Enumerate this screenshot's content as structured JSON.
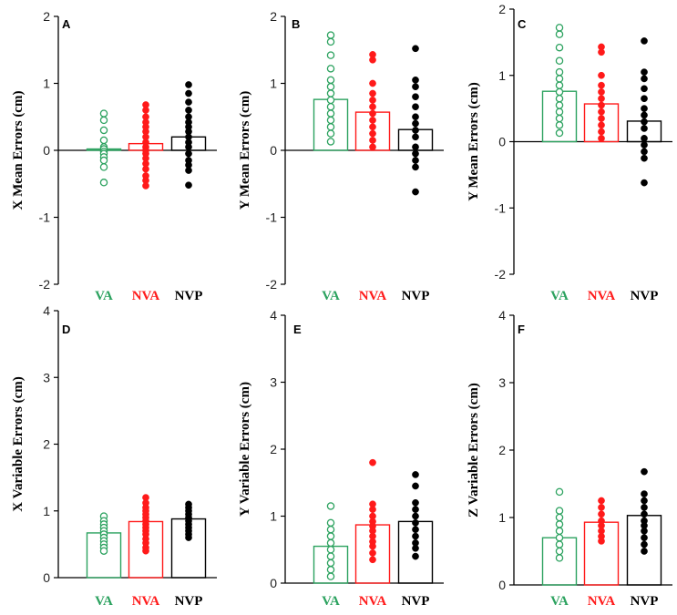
{
  "colors": {
    "VA": "#2ca25f",
    "NVA": "#ff1a1a",
    "NVP": "#000000"
  },
  "chart_data": [
    {
      "panel": "A",
      "type": "bar",
      "ylabel": "X Mean Errors  (cm)",
      "categories": [
        "VA",
        "NVA",
        "NVP"
      ],
      "ylim": [
        -2,
        2
      ],
      "yticks": [
        "-2",
        "-1",
        "0",
        "1",
        "2"
      ],
      "ytick_values": [
        -2,
        -1,
        0,
        1,
        2
      ],
      "means": [
        0.02,
        0.1,
        0.2
      ],
      "points": [
        [
          0.55,
          0.45,
          0.3,
          0.15,
          0.05,
          0.02,
          -0.02,
          -0.05,
          -0.1,
          -0.15,
          -0.25,
          -0.48
        ],
        [
          0.68,
          0.6,
          0.5,
          0.42,
          0.35,
          0.28,
          0.2,
          0.12,
          0.05,
          0.0,
          -0.05,
          -0.12,
          -0.2,
          -0.28,
          -0.38,
          -0.45,
          -0.53
        ],
        [
          0.98,
          0.85,
          0.72,
          0.6,
          0.5,
          0.42,
          0.35,
          0.28,
          0.2,
          0.12,
          0.05,
          -0.05,
          -0.15,
          -0.22,
          -0.3,
          -0.52
        ]
      ]
    },
    {
      "panel": "B",
      "type": "bar",
      "ylabel": "Y Mean Errors  (cm)",
      "categories": [
        "VA",
        "NVA",
        "NVP"
      ],
      "ylim": [
        -2,
        2
      ],
      "yticks": [
        "-2",
        "-1",
        "0",
        "1",
        "2"
      ],
      "ytick_values": [
        -2,
        -1,
        0,
        1,
        2
      ],
      "means": [
        0.76,
        0.57,
        0.31
      ],
      "points": [
        [
          1.72,
          1.62,
          1.42,
          1.22,
          1.05,
          0.95,
          0.85,
          0.75,
          0.65,
          0.55,
          0.45,
          0.35,
          0.25,
          0.13
        ],
        [
          1.43,
          1.35,
          1.0,
          0.85,
          0.75,
          0.65,
          0.55,
          0.45,
          0.35,
          0.25,
          0.15,
          0.05
        ],
        [
          1.52,
          1.05,
          0.95,
          0.8,
          0.65,
          0.5,
          0.4,
          0.3,
          0.2,
          0.05,
          -0.05,
          -0.15,
          -0.25,
          -0.62
        ]
      ]
    },
    {
      "panel": "C",
      "type": "bar",
      "ylabel": "Y Mean Errors  (cm)",
      "categories": [
        "VA",
        "NVA",
        "NVP"
      ],
      "ylim": [
        -2,
        2
      ],
      "yticks": [
        "-2",
        "-1",
        "0",
        "1",
        "2"
      ],
      "ytick_values": [
        -2,
        -1,
        0,
        1,
        2
      ],
      "means": [
        0.76,
        0.57,
        0.31
      ],
      "points": [
        [
          1.72,
          1.62,
          1.42,
          1.22,
          1.05,
          0.95,
          0.85,
          0.75,
          0.65,
          0.55,
          0.45,
          0.35,
          0.25,
          0.13
        ],
        [
          1.43,
          1.35,
          1.0,
          0.85,
          0.75,
          0.65,
          0.55,
          0.45,
          0.35,
          0.25,
          0.15,
          0.05
        ],
        [
          1.52,
          1.05,
          0.95,
          0.8,
          0.65,
          0.5,
          0.4,
          0.3,
          0.2,
          0.05,
          -0.05,
          -0.15,
          -0.25,
          -0.62
        ]
      ]
    },
    {
      "panel": "D",
      "type": "bar",
      "ylabel": "X Variable  Errors  (cm)",
      "categories": [
        "VA",
        "NVA",
        "NVP"
      ],
      "ylim": [
        0,
        4
      ],
      "yticks": [
        "0",
        "1",
        "2",
        "3",
        "4"
      ],
      "ytick_values": [
        0,
        1,
        2,
        3,
        4
      ],
      "means": [
        0.67,
        0.84,
        0.88
      ],
      "points": [
        [
          0.92,
          0.85,
          0.8,
          0.75,
          0.7,
          0.65,
          0.6,
          0.55,
          0.5,
          0.45,
          0.4
        ],
        [
          1.2,
          1.12,
          1.05,
          1.0,
          0.95,
          0.9,
          0.85,
          0.8,
          0.75,
          0.7,
          0.65,
          0.58,
          0.52,
          0.45,
          0.4
        ],
        [
          1.1,
          1.05,
          1.0,
          0.95,
          0.9,
          0.85,
          0.8,
          0.75,
          0.7,
          0.65,
          0.6
        ]
      ]
    },
    {
      "panel": "E",
      "type": "bar",
      "ylabel": "Y Variable  Errors  (cm)",
      "categories": [
        "VA",
        "NVA",
        "NVP"
      ],
      "ylim": [
        0,
        4
      ],
      "yticks": [
        "0",
        "1",
        "2",
        "3",
        "4"
      ],
      "ytick_values": [
        0,
        1,
        2,
        3,
        4
      ],
      "means": [
        0.55,
        0.87,
        0.92
      ],
      "points": [
        [
          1.15,
          0.9,
          0.8,
          0.7,
          0.6,
          0.5,
          0.4,
          0.3,
          0.2,
          0.1
        ],
        [
          1.8,
          1.18,
          1.1,
          1.0,
          0.92,
          0.85,
          0.78,
          0.7,
          0.62,
          0.55,
          0.45,
          0.35
        ],
        [
          1.62,
          1.45,
          1.2,
          1.1,
          1.0,
          0.9,
          0.8,
          0.7,
          0.6,
          0.52,
          0.4
        ]
      ]
    },
    {
      "panel": "F",
      "type": "bar",
      "ylabel": "Z Variable  Errors  (cm)",
      "categories": [
        "VA",
        "NVA",
        "NVP"
      ],
      "ylim": [
        0,
        4
      ],
      "yticks": [
        "0",
        "1",
        "2",
        "3",
        "4"
      ],
      "ytick_values": [
        0,
        1,
        2,
        3,
        4
      ],
      "means": [
        0.7,
        0.93,
        1.03
      ],
      "points": [
        [
          1.38,
          1.1,
          1.0,
          0.9,
          0.8,
          0.7,
          0.6,
          0.5,
          0.4
        ],
        [
          1.25,
          1.15,
          1.05,
          0.95,
          0.88,
          0.8,
          0.72,
          0.65
        ],
        [
          1.68,
          1.35,
          1.25,
          1.15,
          1.05,
          0.95,
          0.88,
          0.8,
          0.7,
          0.6,
          0.5
        ]
      ]
    }
  ]
}
